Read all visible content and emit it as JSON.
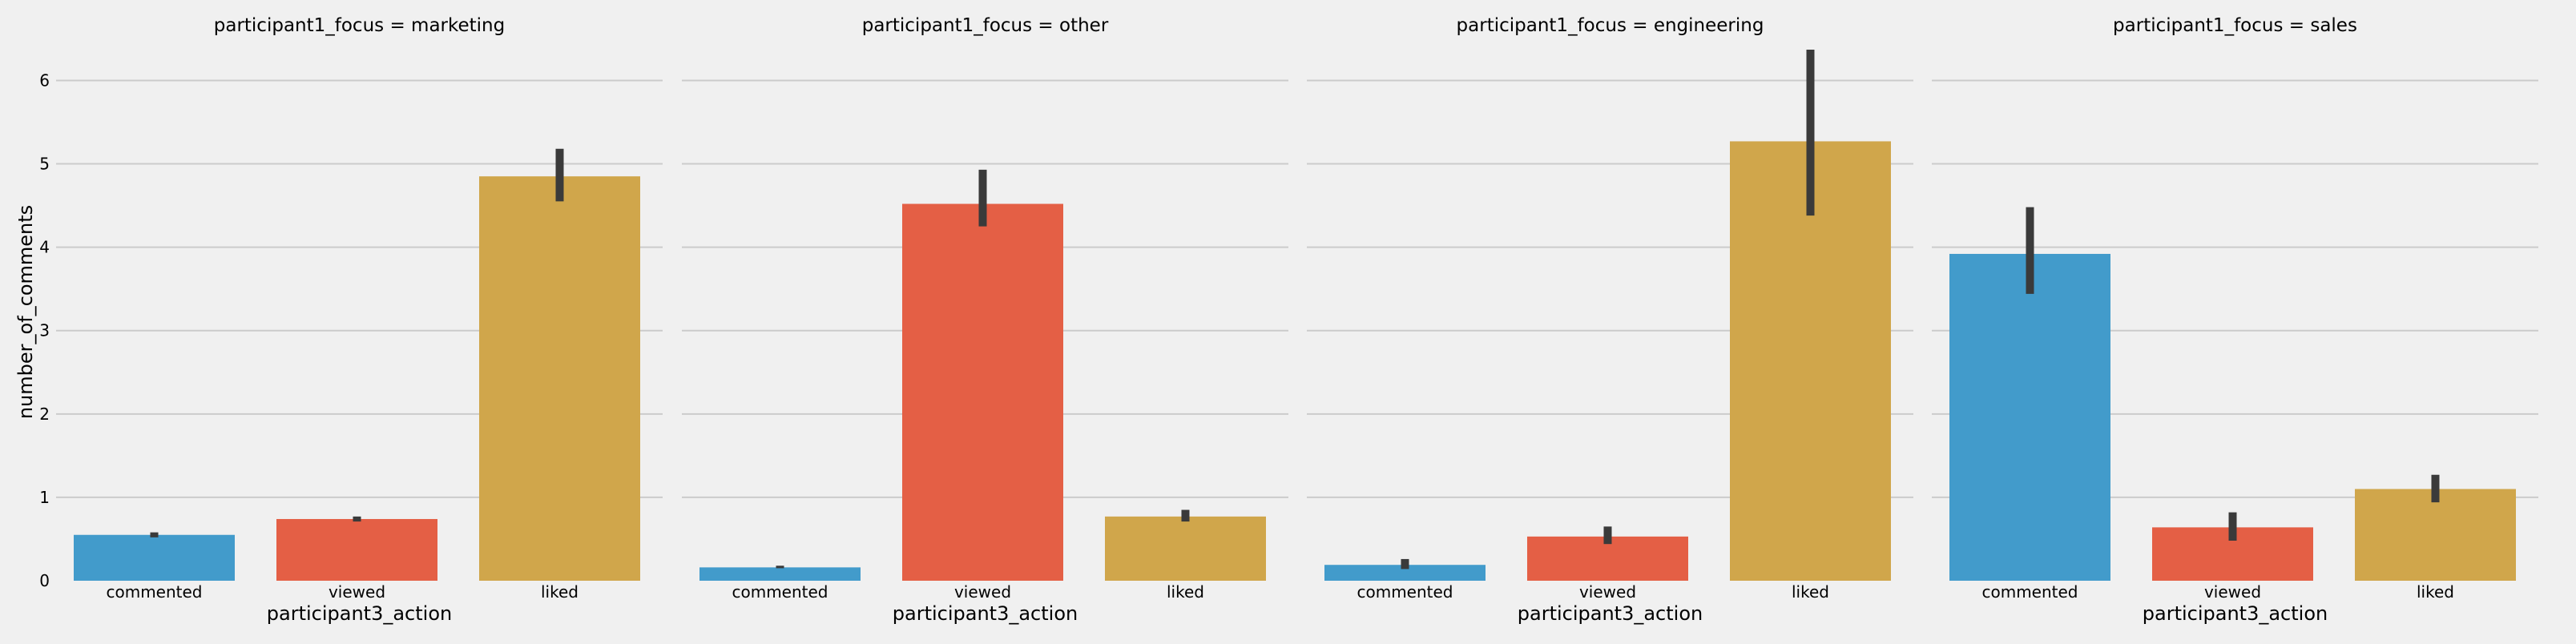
{
  "chart_data": {
    "type": "bar",
    "facet_variable": "participant1_focus",
    "xlabel": "participant3_action",
    "ylabel": "number_of_comments",
    "ylim": [
      0,
      6.6
    ],
    "yticks": [
      0,
      1,
      2,
      3,
      4,
      5,
      6
    ],
    "grid": true,
    "colors": {
      "commented": "#429bcb",
      "viewed": "#e45f45",
      "liked": "#d0a64b",
      "error_bar": "#3a3a3a",
      "background": "#f0f0f0",
      "grid": "#cbcbcb"
    },
    "facets": [
      {
        "title": "participant1_focus = marketing",
        "categories": [
          "commented",
          "viewed",
          "liked"
        ],
        "values": [
          0.55,
          0.74,
          4.85
        ],
        "ci_low": [
          0.52,
          0.71,
          4.55
        ],
        "ci_high": [
          0.58,
          0.77,
          5.18
        ]
      },
      {
        "title": "participant1_focus = other",
        "categories": [
          "commented",
          "viewed",
          "liked"
        ],
        "values": [
          0.16,
          4.52,
          0.77
        ],
        "ci_low": [
          0.15,
          4.25,
          0.71
        ],
        "ci_high": [
          0.18,
          4.93,
          0.85
        ]
      },
      {
        "title": "participant1_focus = engineering",
        "categories": [
          "commented",
          "viewed",
          "liked"
        ],
        "values": [
          0.19,
          0.53,
          5.27
        ],
        "ci_low": [
          0.14,
          0.44,
          4.38
        ],
        "ci_high": [
          0.26,
          0.65,
          6.37
        ]
      },
      {
        "title": "participant1_focus = sales",
        "categories": [
          "commented",
          "viewed",
          "liked"
        ],
        "values": [
          3.92,
          0.64,
          1.1
        ],
        "ci_low": [
          3.44,
          0.48,
          0.94
        ],
        "ci_high": [
          4.48,
          0.82,
          1.27
        ]
      }
    ]
  }
}
